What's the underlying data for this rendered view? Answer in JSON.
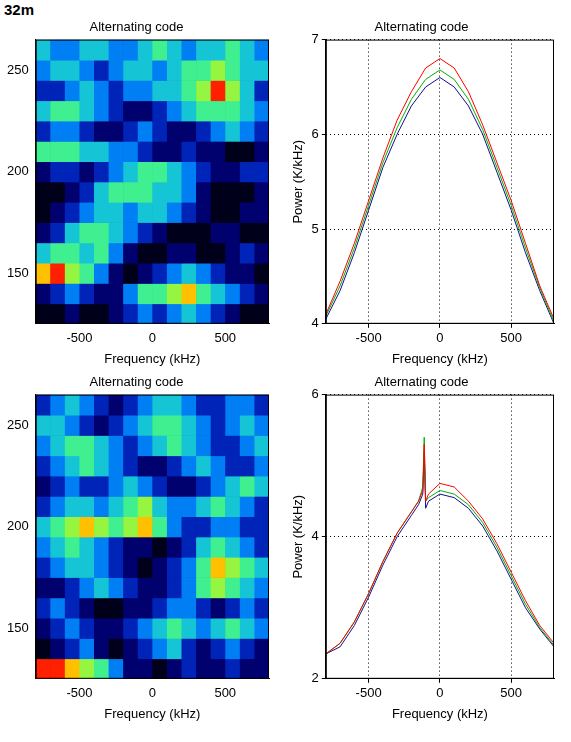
{
  "page_label": "32m",
  "chart_data": [
    {
      "type": "heatmap",
      "title": "Alternating code",
      "x_label": "Frequency (kHz)",
      "x": [
        -750,
        -650,
        -550,
        -450,
        -350,
        -250,
        -150,
        -50,
        50,
        150,
        250,
        350,
        450,
        550,
        650,
        750
      ],
      "y": [
        130,
        140,
        150,
        160,
        170,
        180,
        190,
        200,
        210,
        220,
        230,
        240,
        250,
        260
      ],
      "cells": [
        [
          1,
          1,
          2,
          1,
          1,
          2,
          3,
          4,
          3,
          4,
          5,
          4,
          3,
          2,
          1,
          1
        ],
        [
          2,
          3,
          4,
          3,
          2,
          2,
          4,
          6,
          6,
          7,
          8,
          6,
          5,
          4,
          3,
          2
        ],
        [
          8,
          9,
          7,
          6,
          4,
          2,
          1,
          2,
          3,
          4,
          5,
          4,
          3,
          2,
          2,
          1
        ],
        [
          5,
          6,
          6,
          5,
          6,
          4,
          2,
          1,
          1,
          2,
          2,
          1,
          1,
          2,
          3,
          2
        ],
        [
          2,
          3,
          5,
          6,
          6,
          5,
          4,
          3,
          2,
          1,
          1,
          1,
          2,
          2,
          1,
          1
        ],
        [
          1,
          2,
          3,
          4,
          5,
          5,
          4,
          5,
          5,
          4,
          3,
          2,
          1,
          1,
          2,
          2
        ],
        [
          1,
          1,
          2,
          3,
          5,
          6,
          6,
          6,
          5,
          5,
          4,
          2,
          1,
          1,
          1,
          2
        ],
        [
          2,
          3,
          3,
          2,
          3,
          4,
          5,
          6,
          6,
          5,
          4,
          3,
          2,
          2,
          3,
          3
        ],
        [
          6,
          6,
          6,
          5,
          5,
          4,
          4,
          3,
          2,
          2,
          3,
          2,
          2,
          1,
          1,
          2
        ],
        [
          3,
          4,
          4,
          3,
          2,
          2,
          3,
          4,
          3,
          2,
          2,
          3,
          4,
          5,
          4,
          3
        ],
        [
          5,
          6,
          6,
          5,
          4,
          3,
          2,
          2,
          3,
          4,
          5,
          6,
          6,
          6,
          5,
          4
        ],
        [
          3,
          3,
          4,
          5,
          4,
          3,
          4,
          4,
          5,
          5,
          6,
          7,
          9,
          7,
          5,
          3
        ],
        [
          4,
          5,
          5,
          4,
          3,
          4,
          5,
          5,
          4,
          5,
          6,
          6,
          7,
          6,
          5,
          5
        ],
        [
          5,
          4,
          4,
          5,
          5,
          4,
          4,
          5,
          6,
          5,
          4,
          5,
          5,
          6,
          5,
          4
        ]
      ],
      "xlim": [
        -800,
        800
      ],
      "ylim": [
        125,
        265
      ],
      "xticks": [
        -500,
        0,
        500
      ],
      "yticks": [
        150,
        200,
        250
      ],
      "grid": false
    },
    {
      "type": "line",
      "title": "Alternating code",
      "x_label": "Frequency (kHz)",
      "y_label": "Power (K/kHz)",
      "x": [
        -800,
        -700,
        -600,
        -500,
        -400,
        -300,
        -200,
        -100,
        0,
        100,
        200,
        300,
        400,
        500,
        600,
        700,
        800
      ],
      "series": [
        {
          "color": "#ff0000",
          "values": [
            4.1,
            4.45,
            4.85,
            5.3,
            5.75,
            6.15,
            6.45,
            6.7,
            6.8,
            6.7,
            6.45,
            6.1,
            5.7,
            5.3,
            4.85,
            4.4,
            4.05
          ]
        },
        {
          "color": "#00b000",
          "values": [
            4.08,
            4.4,
            4.8,
            5.25,
            5.7,
            6.07,
            6.37,
            6.58,
            6.68,
            6.58,
            6.37,
            6.05,
            5.65,
            5.25,
            4.8,
            4.38,
            4.02
          ]
        },
        {
          "color": "#101090",
          "values": [
            4.05,
            4.35,
            4.75,
            5.2,
            5.65,
            6.0,
            6.3,
            6.5,
            6.6,
            6.5,
            6.3,
            6.0,
            5.6,
            5.2,
            4.75,
            4.35,
            4.0
          ]
        }
      ],
      "xlim": [
        -800,
        800
      ],
      "ylim": [
        4,
        7
      ],
      "xticks": [
        -500,
        0,
        500
      ],
      "yticks": [
        4,
        5,
        6,
        7
      ],
      "grid": true
    },
    {
      "type": "heatmap",
      "title": "Alternating code",
      "x_label": "Frequency (kHz)",
      "x": [
        -750,
        -650,
        -550,
        -450,
        -350,
        -250,
        -150,
        -50,
        50,
        150,
        250,
        350,
        450,
        550,
        650,
        750
      ],
      "y": [
        130,
        140,
        150,
        160,
        170,
        180,
        190,
        200,
        210,
        220,
        230,
        240,
        250,
        260
      ],
      "cells": [
        [
          9,
          9,
          8,
          7,
          6,
          4,
          2,
          2,
          1,
          2,
          3,
          2,
          2,
          3,
          2,
          2
        ],
        [
          1,
          2,
          3,
          4,
          2,
          1,
          2,
          3,
          4,
          5,
          3,
          2,
          3,
          4,
          3,
          2
        ],
        [
          2,
          3,
          4,
          3,
          2,
          2,
          3,
          4,
          5,
          6,
          5,
          4,
          5,
          6,
          5,
          4
        ],
        [
          3,
          4,
          3,
          2,
          1,
          1,
          2,
          2,
          3,
          4,
          4,
          3,
          2,
          3,
          4,
          3
        ],
        [
          2,
          2,
          3,
          4,
          5,
          4,
          3,
          2,
          2,
          3,
          4,
          6,
          7,
          6,
          5,
          4
        ],
        [
          3,
          4,
          5,
          5,
          4,
          3,
          2,
          1,
          2,
          3,
          4,
          6,
          8,
          7,
          6,
          5
        ],
        [
          4,
          5,
          6,
          5,
          4,
          3,
          2,
          2,
          1,
          2,
          3,
          5,
          6,
          5,
          4,
          3
        ],
        [
          5,
          6,
          7,
          8,
          7,
          6,
          7,
          8,
          6,
          4,
          3,
          3,
          4,
          4,
          3,
          3
        ],
        [
          3,
          4,
          5,
          5,
          4,
          5,
          6,
          7,
          5,
          4,
          4,
          5,
          6,
          5,
          4,
          3
        ],
        [
          2,
          3,
          4,
          3,
          3,
          4,
          5,
          4,
          3,
          2,
          2,
          3,
          4,
          5,
          6,
          5
        ],
        [
          3,
          4,
          5,
          6,
          5,
          4,
          3,
          2,
          2,
          3,
          4,
          5,
          4,
          3,
          3,
          4
        ],
        [
          4,
          5,
          6,
          6,
          5,
          4,
          3,
          4,
          5,
          6,
          5,
          4,
          3,
          3,
          4,
          5
        ],
        [
          5,
          5,
          4,
          3,
          2,
          3,
          4,
          5,
          6,
          6,
          5,
          4,
          3,
          4,
          5,
          4
        ],
        [
          3,
          4,
          5,
          4,
          3,
          2,
          3,
          4,
          5,
          5,
          4,
          3,
          3,
          4,
          4,
          3
        ]
      ],
      "xlim": [
        -800,
        800
      ],
      "ylim": [
        125,
        265
      ],
      "xticks": [
        -500,
        0,
        500
      ],
      "yticks": [
        150,
        200,
        250
      ],
      "grid": false
    },
    {
      "type": "line",
      "title": "Alternating code",
      "x_label": "Frequency (kHz)",
      "y_label": "Power (K/kHz)",
      "x": [
        -800,
        -700,
        -600,
        -500,
        -400,
        -300,
        -200,
        -150,
        -120,
        -110,
        -100,
        -80,
        0,
        100,
        200,
        300,
        400,
        500,
        600,
        700,
        800
      ],
      "series": [
        {
          "color": "#ff0000",
          "values": [
            2.35,
            2.5,
            2.8,
            3.2,
            3.65,
            4.05,
            4.35,
            4.5,
            4.65,
            5.3,
            4.5,
            4.6,
            4.75,
            4.7,
            4.5,
            4.25,
            3.9,
            3.5,
            3.1,
            2.75,
            2.5
          ]
        },
        {
          "color": "#00b000",
          "values": [
            2.35,
            2.5,
            2.8,
            3.2,
            3.65,
            4.05,
            4.35,
            4.5,
            4.7,
            5.4,
            4.5,
            4.55,
            4.65,
            4.6,
            4.45,
            4.2,
            3.85,
            3.45,
            3.05,
            2.72,
            2.47
          ]
        },
        {
          "color": "#101090",
          "values": [
            2.35,
            2.45,
            2.75,
            3.15,
            3.6,
            4.0,
            4.3,
            4.45,
            4.6,
            5.2,
            4.4,
            4.5,
            4.6,
            4.55,
            4.4,
            4.15,
            3.8,
            3.4,
            3.0,
            2.7,
            2.45
          ]
        }
      ],
      "xlim": [
        -800,
        800
      ],
      "ylim": [
        2,
        6
      ],
      "xticks": [
        -500,
        0,
        500
      ],
      "yticks": [
        2,
        4,
        6
      ],
      "grid": true
    }
  ]
}
